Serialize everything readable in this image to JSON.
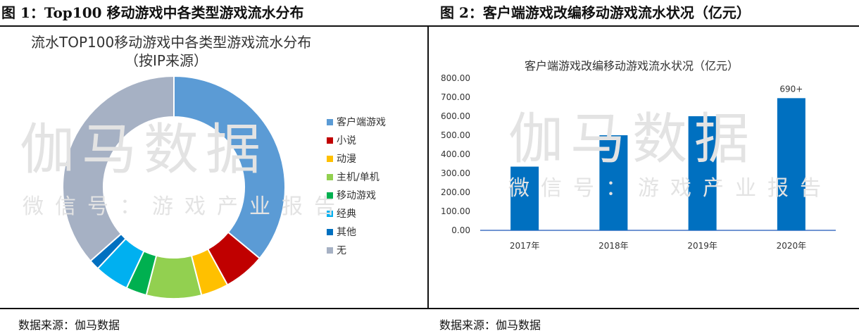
{
  "figure1": {
    "caption": "图 1：Top100 移动游戏中各类型游戏流水分布",
    "watermark_main": "伽马数据",
    "watermark_sub": "微信号：游戏产业报告",
    "source": "数据来源：伽马数据"
  },
  "figure2": {
    "caption": "图 2：客户端游戏改编移动游戏流水状况（亿元）",
    "watermark_main": "伽马数据",
    "watermark_sub": "微信号：游戏产业报告",
    "source": "数据来源：伽马数据"
  },
  "chart_data": [
    {
      "type": "pie",
      "style": "donut",
      "title": "流水TOP100移动游戏中各类型游戏流水分布",
      "subtitle": "（按IP来源）",
      "legend_position": "right",
      "labels": [
        "客户端游戏",
        "小说",
        "动漫",
        "主机/单机",
        "移动游戏",
        "经典",
        "其他",
        "无"
      ],
      "values": [
        36,
        6,
        4,
        8,
        3,
        5,
        1.5,
        36.5
      ],
      "colors": [
        "#5b9bd5",
        "#c00000",
        "#ffc000",
        "#92d050",
        "#00b050",
        "#00b0f0",
        "#0070c0",
        "#a6b1c4"
      ]
    },
    {
      "type": "bar",
      "title": "客户端游戏改编移动游戏流水状况（亿元）",
      "categories": [
        "2017年",
        "2018年",
        "2019年",
        "2020年"
      ],
      "values": [
        335,
        500,
        600,
        695
      ],
      "data_labels": [
        "",
        "",
        "",
        "690+"
      ],
      "ylim": [
        0,
        800
      ],
      "yticks": [
        "0.00",
        "100.00",
        "200.00",
        "300.00",
        "400.00",
        "500.00",
        "600.00",
        "700.00",
        "800.00"
      ],
      "grid": false,
      "color": "#0070c0"
    }
  ]
}
